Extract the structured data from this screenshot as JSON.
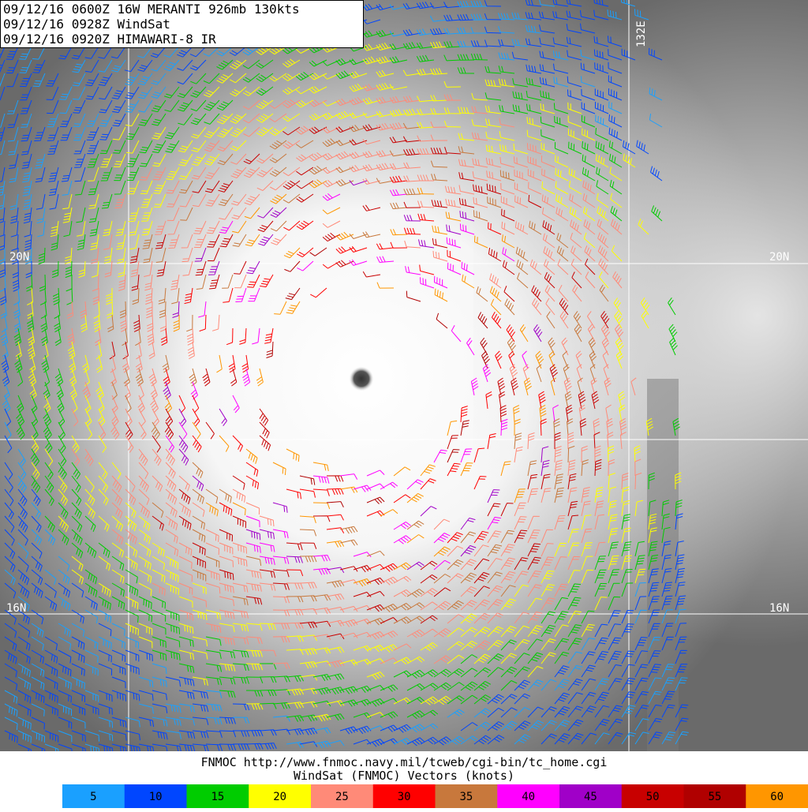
{
  "header": {
    "lines": [
      "09/12/16 0600Z  16W MERANTI 926mb 130kts",
      "09/12/16 0928Z  WindSat",
      "09/12/16 0920Z  HIMAWARI-8 IR"
    ]
  },
  "grid_labels": {
    "lon": "132E",
    "lat_upper_left": "20N",
    "lat_upper_right": "20N",
    "lat_lower_left": "16N",
    "lat_lower_right": "16N"
  },
  "footer": {
    "source": "FNMOC http://www.fnmoc.navy.mil/tcweb/cgi-bin/tc_home.cgi",
    "caption": "WindSat (FNMOC) Vectors (knots)"
  },
  "legend": {
    "items": [
      {
        "value": 5,
        "color": "#1aa0ff"
      },
      {
        "value": 10,
        "color": "#0046ff"
      },
      {
        "value": 15,
        "color": "#00cc00"
      },
      {
        "value": 20,
        "color": "#ffff00"
      },
      {
        "value": 25,
        "color": "#ff8a78"
      },
      {
        "value": 30,
        "color": "#ff0000"
      },
      {
        "value": 35,
        "color": "#c8783c"
      },
      {
        "value": 40,
        "color": "#ff00ff"
      },
      {
        "value": 45,
        "color": "#a000c8"
      },
      {
        "value": 50,
        "color": "#c80000"
      },
      {
        "value": 55,
        "color": "#b00000"
      },
      {
        "value": 60,
        "color": "#ff9600"
      }
    ]
  }
}
